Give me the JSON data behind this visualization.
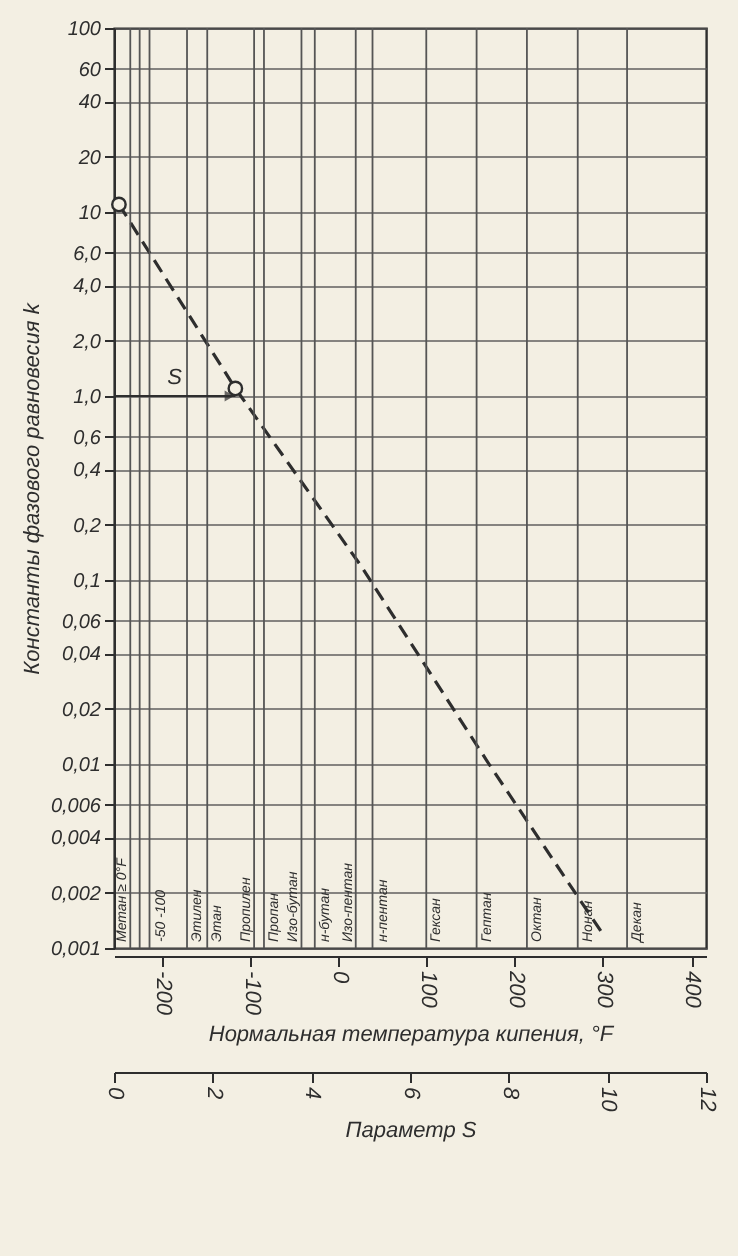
{
  "chart_data": {
    "type": "line",
    "xlabel": "Параметр S",
    "ylabel": "Константы фазового равновесия k",
    "x2label": "Нормальная температура кипения, °F",
    "xlim": [
      0,
      12
    ],
    "xticks": [
      0,
      2,
      4,
      6,
      8,
      10,
      12
    ],
    "x2lim": [
      -255,
      417
    ],
    "x2ticks": [
      -200,
      -100,
      0,
      100,
      200,
      300,
      400
    ],
    "log": "y",
    "ylim": [
      0.001,
      100
    ],
    "yticks": [
      100,
      60,
      40,
      20,
      10,
      {
        "value": 6,
        "label": "6,0"
      },
      {
        "value": 4,
        "label": "4,0"
      },
      {
        "value": 2,
        "label": "2,0"
      },
      {
        "value": 1,
        "label": "1,0"
      },
      {
        "value": 0.6,
        "label": "0,6"
      },
      {
        "value": 0.4,
        "label": "0,4"
      },
      {
        "value": 0.2,
        "label": "0,2"
      },
      {
        "value": 0.1,
        "label": "0,1"
      },
      {
        "value": 0.06,
        "label": "0,06"
      },
      {
        "value": 0.04,
        "label": "0,04"
      },
      {
        "value": 0.02,
        "label": "0,02"
      },
      {
        "value": 0.01,
        "label": "0,01"
      },
      {
        "value": 0.006,
        "label": "0,006"
      },
      {
        "value": 0.004,
        "label": "0,004"
      },
      {
        "value": 0.002,
        "label": "0,002"
      },
      {
        "value": 0.001,
        "label": "0,001"
      }
    ],
    "grid": "y",
    "series": [
      {
        "type": "line",
        "color": "#2e2e2e",
        "line_style": "dashed",
        "x": [
          0.1,
          2.46,
          5,
          7.6,
          9.9
        ],
        "values": [
          11,
          1.1,
          0.12,
          0.01,
          0.0012
        ]
      },
      {
        "type": "scatter",
        "color": "#2e2e2e",
        "marker": "circle",
        "x": [
          0.1,
          2.46
        ],
        "values": [
          11,
          1.1
        ]
      }
    ],
    "ref_lines": [
      {
        "axis": "x",
        "value": 0.33,
        "label": "Метан ≥ 0°F"
      },
      {
        "axis": "x",
        "value": 0.52
      },
      {
        "axis": "x",
        "value": 0.72
      },
      {
        "axis": "x",
        "value": 1.48,
        "label": "Этилен"
      },
      {
        "axis": "x",
        "value": 1.89,
        "label": "Этан"
      },
      {
        "axis": "x",
        "value": 2.84,
        "label": "Пропилен"
      },
      {
        "axis": "x",
        "value": 3.04,
        "label": "Пропан"
      },
      {
        "axis": "x",
        "value": 3.8,
        "label": "Изо-бутан"
      },
      {
        "axis": "x",
        "value": 4.07,
        "label": "н-бутан"
      },
      {
        "axis": "x",
        "value": 4.9,
        "label": "Изо-пентан"
      },
      {
        "axis": "x",
        "value": 5.24,
        "label": "н-пентан"
      },
      {
        "axis": "x",
        "value": 6.33,
        "label": "Гексан"
      },
      {
        "axis": "x",
        "value": 7.35,
        "label": "Гептан"
      },
      {
        "axis": "x",
        "value": 8.37,
        "label": "Октан"
      },
      {
        "axis": "x",
        "value": 9.4,
        "label": "Нонан"
      },
      {
        "axis": "x",
        "value": 10.4,
        "label": "Декан"
      }
    ],
    "annotations": [
      {
        "text": "S",
        "x": 2.46,
        "y": 1
      },
      {
        "text": "-50 -100",
        "x": 0.75,
        "y": 0.001
      }
    ]
  }
}
